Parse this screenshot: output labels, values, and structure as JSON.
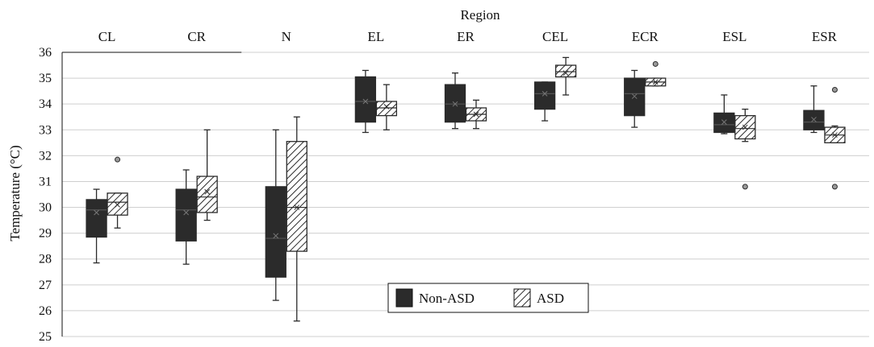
{
  "chart_data": {
    "type": "boxplot",
    "title": "",
    "xlabel": "Region",
    "ylabel": "Temperature (°C)",
    "ylim": [
      25,
      36
    ],
    "yticks": [
      25,
      26,
      27,
      28,
      29,
      30,
      31,
      32,
      33,
      34,
      35,
      36
    ],
    "grid": true,
    "legend_position": "bottom-center",
    "categories": [
      "CL",
      "CR",
      "N",
      "EL",
      "ER",
      "CEL",
      "ECR",
      "ESL",
      "ESR"
    ],
    "series": [
      {
        "name": "Non-ASD",
        "fill": "solid",
        "color": "#2b2b2b",
        "boxes": [
          {
            "min": 27.85,
            "q1": 28.85,
            "median": 29.9,
            "q3": 30.3,
            "max": 30.7,
            "mean": 29.8,
            "outliers": []
          },
          {
            "min": 27.8,
            "q1": 28.7,
            "median": 29.9,
            "q3": 30.7,
            "max": 31.45,
            "mean": 29.8,
            "outliers": []
          },
          {
            "min": 26.4,
            "q1": 27.3,
            "median": 28.8,
            "q3": 30.8,
            "max": 33.0,
            "mean": 28.9,
            "outliers": []
          },
          {
            "min": 32.9,
            "q1": 33.3,
            "median": 34.1,
            "q3": 35.05,
            "max": 35.3,
            "mean": 34.1,
            "outliers": []
          },
          {
            "min": 33.05,
            "q1": 33.3,
            "median": 34.0,
            "q3": 34.75,
            "max": 35.2,
            "mean": 34.0,
            "outliers": []
          },
          {
            "min": 33.35,
            "q1": 33.8,
            "median": 34.4,
            "q3": 34.85,
            "max": 34.85,
            "mean": 34.4,
            "outliers": []
          },
          {
            "min": 33.1,
            "q1": 33.55,
            "median": 34.4,
            "q3": 35.0,
            "max": 35.3,
            "mean": 34.3,
            "outliers": []
          },
          {
            "min": 32.85,
            "q1": 32.9,
            "median": 33.2,
            "q3": 33.65,
            "max": 34.35,
            "mean": 33.3,
            "outliers": []
          },
          {
            "min": 32.9,
            "q1": 33.0,
            "median": 33.3,
            "q3": 33.75,
            "max": 34.7,
            "mean": 33.4,
            "outliers": []
          }
        ]
      },
      {
        "name": "ASD",
        "fill": "hatched",
        "color": "#2b2b2b",
        "boxes": [
          {
            "min": 29.2,
            "q1": 29.7,
            "median": 30.2,
            "q3": 30.55,
            "max": 30.55,
            "mean": 30.1,
            "outliers": [
              31.85
            ]
          },
          {
            "min": 29.5,
            "q1": 29.8,
            "median": 30.4,
            "q3": 31.2,
            "max": 33.0,
            "mean": 30.6,
            "outliers": []
          },
          {
            "min": 25.6,
            "q1": 28.3,
            "median": 30.0,
            "q3": 32.55,
            "max": 33.5,
            "mean": 30.0,
            "outliers": []
          },
          {
            "min": 33.0,
            "q1": 33.55,
            "median": 33.85,
            "q3": 34.1,
            "max": 34.75,
            "mean": 33.9,
            "outliers": []
          },
          {
            "min": 33.05,
            "q1": 33.35,
            "median": 33.6,
            "q3": 33.85,
            "max": 34.15,
            "mean": 33.6,
            "outliers": []
          },
          {
            "min": 34.35,
            "q1": 35.05,
            "median": 35.25,
            "q3": 35.5,
            "max": 35.8,
            "mean": 35.2,
            "outliers": []
          },
          {
            "min": 34.7,
            "q1": 34.7,
            "median": 34.85,
            "q3": 35.0,
            "max": 35.0,
            "mean": 34.85,
            "outliers": [
              35.55
            ]
          },
          {
            "min": 32.55,
            "q1": 32.65,
            "median": 33.05,
            "q3": 33.55,
            "max": 33.8,
            "mean": 33.1,
            "outliers": [
              30.8
            ]
          },
          {
            "min": 32.5,
            "q1": 32.5,
            "median": 32.8,
            "q3": 33.1,
            "max": 33.15,
            "mean": 32.8,
            "outliers": [
              34.55,
              30.8
            ]
          }
        ]
      }
    ]
  }
}
